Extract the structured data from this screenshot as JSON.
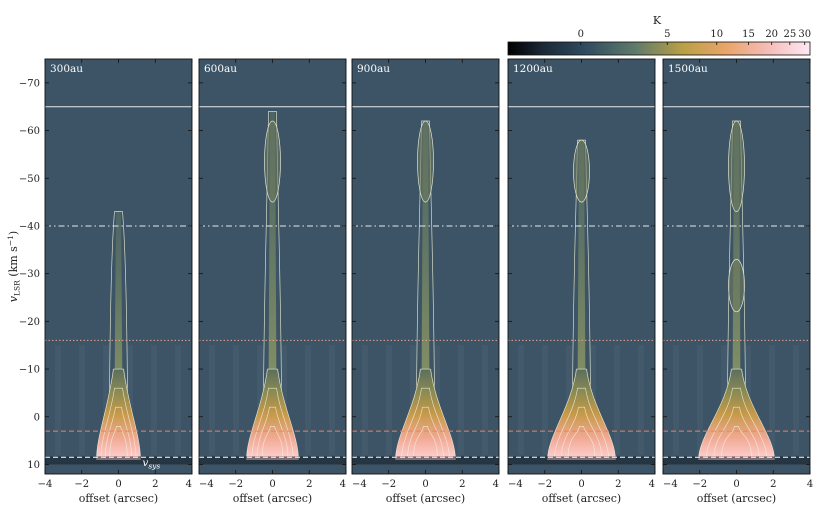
{
  "chart_data": {
    "type": "heatmap",
    "description_free": true,
    "colorbar": {
      "label": "K",
      "ticks": [
        0,
        5,
        10,
        15,
        20,
        25,
        30
      ],
      "range": [
        -4,
        32
      ],
      "scale": "asinh",
      "colors": [
        "#000000",
        "#2e4a5e",
        "#5f7a6a",
        "#b9a046",
        "#e9a468",
        "#f5bcb8",
        "#ffe8f4"
      ]
    },
    "x_axis": {
      "label": "offset (arcsec)",
      "ticks": [
        -4,
        -2,
        0,
        2,
        4
      ],
      "range": [
        -4,
        4
      ]
    },
    "y_axis": {
      "label": "v",
      "label_sub": "LSR",
      "label_unit": "(km s",
      "label_unit_sup": "−1",
      "label_unit_end": ")",
      "ticks": [
        -70,
        -60,
        -50,
        -40,
        -30,
        -20,
        -10,
        0,
        10
      ],
      "range": [
        12,
        -75
      ],
      "inverted": true
    },
    "vsys_label": "v",
    "vsys_label_sub": "sys",
    "reference_lines": [
      {
        "v": -65,
        "style": "solid",
        "color": "#e8e8e8"
      },
      {
        "v": -40,
        "style": "dashdot",
        "color": "#e8e8e8"
      },
      {
        "v": -16,
        "style": "dotted",
        "color": "#e6a090"
      },
      {
        "v": 3,
        "style": "dashed",
        "color": "#e8846a"
      },
      {
        "v": 8.5,
        "style": "dashed",
        "color": "#ffffff"
      }
    ],
    "panels": [
      {
        "label": "300au",
        "jet_tip": -43,
        "knots": []
      },
      {
        "label": "600au",
        "jet_tip": -64,
        "knots": [
          [
            -62,
            -45
          ]
        ]
      },
      {
        "label": "900au",
        "jet_tip": -62,
        "knots": [
          [
            -62,
            -45
          ]
        ]
      },
      {
        "label": "1200au",
        "jet_tip": -58,
        "knots": [
          [
            -58,
            -45
          ]
        ]
      },
      {
        "label": "1500au",
        "jet_tip": -62,
        "knots": [
          [
            -62,
            -43
          ],
          [
            -33,
            -22
          ]
        ]
      }
    ]
  }
}
